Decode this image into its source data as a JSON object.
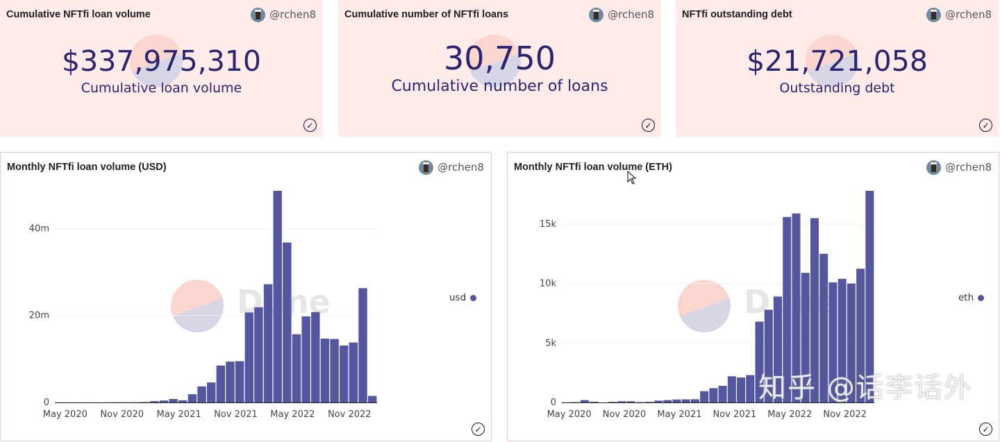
{
  "colors": {
    "card_bg": "#feebea",
    "value_text": "#2a2470",
    "bar": "#5457a0"
  },
  "counters": [
    {
      "title": "Cumulative NFTfi loan volume",
      "author": "@rchen8",
      "value": "$337,975,310",
      "label": "Cumulative loan volume"
    },
    {
      "title": "Cumulative number of NFTfi loans",
      "author": "@rchen8",
      "value": "30,750",
      "label": "Cumulative number of loans"
    },
    {
      "title": "NFTfi outstanding debt",
      "author": "@rchen8",
      "value": "$21,721,058",
      "label": "Outstanding debt"
    }
  ],
  "watermark_logo": "Dune",
  "overlay_watermark": "知乎 @话李话外",
  "chart_data": [
    {
      "type": "bar",
      "title": "Monthly NFTfi loan volume (USD)",
      "author": "@rchen8",
      "legend": "usd",
      "legend_placement": "right",
      "grid": true,
      "yticks": [
        {
          "v": 0,
          "label": "0"
        },
        {
          "v": 20000000,
          "label": "20m"
        },
        {
          "v": 40000000,
          "label": "40m"
        }
      ],
      "xticks": [
        {
          "i": 0,
          "label": "May 2020"
        },
        {
          "i": 6,
          "label": "Nov 2020"
        },
        {
          "i": 12,
          "label": "May 2021"
        },
        {
          "i": 18,
          "label": "Nov 2021"
        },
        {
          "i": 24,
          "label": "May 2022"
        },
        {
          "i": 30,
          "label": "Nov 2022"
        }
      ],
      "categories": [
        "2020-05",
        "2020-06",
        "2020-07",
        "2020-08",
        "2020-09",
        "2020-10",
        "2020-11",
        "2020-12",
        "2021-01",
        "2021-02",
        "2021-03",
        "2021-04",
        "2021-05",
        "2021-06",
        "2021-07",
        "2021-08",
        "2021-09",
        "2021-10",
        "2021-11",
        "2021-12",
        "2022-01",
        "2022-02",
        "2022-03",
        "2022-04",
        "2022-05",
        "2022-06",
        "2022-07",
        "2022-08",
        "2022-09",
        "2022-10",
        "2022-11",
        "2022-12",
        "2023-01",
        "2023-02"
      ],
      "values": [
        20000,
        20000,
        30000,
        20000,
        20000,
        30000,
        40000,
        50000,
        60000,
        100000,
        300000,
        450000,
        800000,
        500000,
        1900000,
        3700000,
        4600000,
        8500000,
        9400000,
        9500000,
        20700000,
        21900000,
        27200000,
        48700000,
        36800000,
        15700000,
        19800000,
        20800000,
        14700000,
        14600000,
        13100000,
        13800000,
        26300000,
        1500000
      ],
      "ylim": [
        0,
        48700000
      ]
    },
    {
      "type": "bar",
      "title": "Monthly NFTfi loan volume (ETH)",
      "author": "@rchen8",
      "legend": "eth",
      "legend_placement": "right",
      "grid": true,
      "yticks": [
        {
          "v": 0,
          "label": "0"
        },
        {
          "v": 5000,
          "label": "5k"
        },
        {
          "v": 10000,
          "label": "10k"
        },
        {
          "v": 15000,
          "label": "15k"
        }
      ],
      "xticks": [
        {
          "i": 0,
          "label": "May 2020"
        },
        {
          "i": 6,
          "label": "Nov 2020"
        },
        {
          "i": 12,
          "label": "May 2021"
        },
        {
          "i": 18,
          "label": "Nov 2021"
        },
        {
          "i": 24,
          "label": "May 2022"
        },
        {
          "i": 30,
          "label": "Nov 2022"
        }
      ],
      "categories": [
        "2020-05",
        "2020-06",
        "2020-07",
        "2020-08",
        "2020-09",
        "2020-10",
        "2020-11",
        "2020-12",
        "2021-01",
        "2021-02",
        "2021-03",
        "2021-04",
        "2021-05",
        "2021-06",
        "2021-07",
        "2021-08",
        "2021-09",
        "2021-10",
        "2021-11",
        "2021-12",
        "2022-01",
        "2022-02",
        "2022-03",
        "2022-04",
        "2022-05",
        "2022-06",
        "2022-07",
        "2022-08",
        "2022-09",
        "2022-10",
        "2022-11",
        "2022-12",
        "2023-01",
        "2023-02"
      ],
      "values": [
        10,
        30,
        200,
        60,
        0,
        50,
        100,
        100,
        30,
        50,
        150,
        200,
        250,
        260,
        270,
        950,
        1200,
        1400,
        2200,
        2100,
        2300,
        6800,
        7800,
        8900,
        15600,
        15900,
        10900,
        15500,
        12500,
        10100,
        10400,
        10000,
        11250,
        17800
      ],
      "ylim": [
        0,
        17800
      ]
    }
  ]
}
